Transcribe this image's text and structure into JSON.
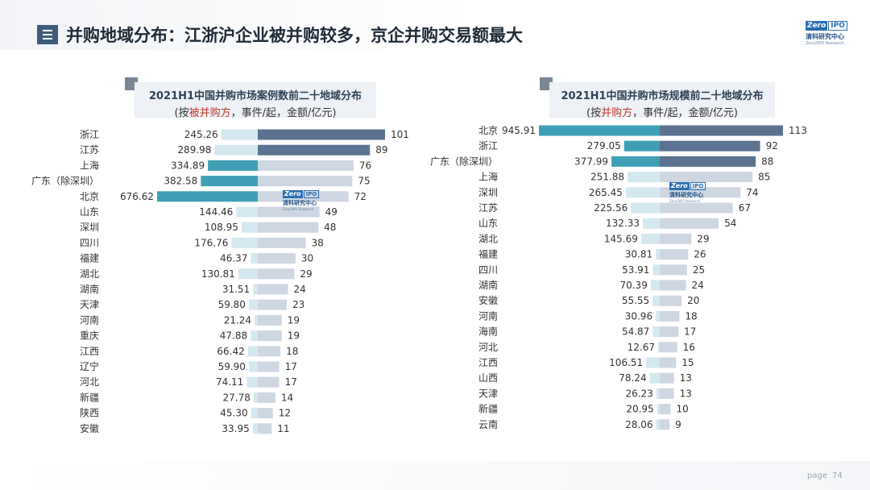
{
  "page": {
    "title": "并购地域分布：江浙沪企业被并购较多，京企并购交易额最大",
    "page_label": "page",
    "page_number": "74"
  },
  "logo": {
    "brand": "Zero",
    "brand2": "IPO",
    "name_cn": "清科研究中心",
    "name_en": "Zero2IPO Research"
  },
  "watermark": {
    "brand": "Zero",
    "brand2": "IPO",
    "name_cn": "清科研究中心",
    "name_en": "Zero2IPO Research"
  },
  "colors": {
    "case_bar": "#5b7391",
    "left_highlight": "#3fa0b5",
    "left_light": "#d4e8ef",
    "right_light": "#cdd6e1"
  },
  "chart_data": [
    {
      "type": "bar",
      "title": "2021H1中国并购市场案例数前二十地域分布",
      "subtitle_prefix": "(按",
      "subtitle_highlight": "被并购方",
      "subtitle_suffix": "，事件/起，金额/亿元)",
      "categories": [
        "浙江",
        "江苏",
        "上海",
        "广东（除深圳）",
        "北京",
        "山东",
        "深圳",
        "四川",
        "福建",
        "湖北",
        "湖南",
        "天津",
        "河南",
        "重庆",
        "江西",
        "辽宁",
        "河北",
        "新疆",
        "陕西",
        "安徽"
      ],
      "series": [
        {
          "values": [
            245.26,
            289.98,
            334.89,
            382.58,
            676.62,
            144.46,
            108.95,
            176.76,
            46.37,
            130.81,
            31.51,
            59.8,
            21.24,
            47.88,
            66.42,
            59.9,
            74.11,
            27.78,
            45.3,
            33.95
          ]
        },
        {
          "values": [
            101,
            89,
            76,
            75,
            72,
            49,
            48,
            38,
            30,
            29,
            24,
            23,
            19,
            19,
            18,
            17,
            17,
            14,
            12,
            11
          ]
        }
      ],
      "amount_labels": [
        "245.26",
        "289.98",
        "334.89",
        "382.58",
        "676.62",
        "144.46",
        "108.95",
        "176.76",
        "46.37",
        "130.81",
        "31.51",
        "59.80",
        "21.24",
        "47.88",
        "66.42",
        "59.90",
        "74.11",
        "27.78",
        "45.30",
        "33.95"
      ],
      "highlight": [
        false,
        false,
        true,
        true,
        true,
        false,
        false,
        false,
        false,
        false,
        false,
        false,
        false,
        false,
        false,
        false,
        false,
        false,
        false,
        false
      ],
      "highlight_cases": [
        true,
        true,
        false,
        false,
        false,
        false,
        false,
        false,
        false,
        false,
        false,
        false,
        false,
        false,
        false,
        false,
        false,
        false,
        false,
        false
      ]
    },
    {
      "type": "bar",
      "title": "2021H1中国并购市场规模前二十地域分布",
      "subtitle_prefix": "(按",
      "subtitle_highlight": "并购方",
      "subtitle_suffix": "，事件/起，金额/亿元)",
      "categories": [
        "北京",
        "浙江",
        "广东（除深圳）",
        "上海",
        "深圳",
        "江苏",
        "山东",
        "湖北",
        "福建",
        "四川",
        "湖南",
        "安徽",
        "河南",
        "海南",
        "河北",
        "江西",
        "山西",
        "天津",
        "新疆",
        "云南"
      ],
      "series": [
        {
          "values": [
            945.91,
            279.05,
            377.99,
            251.88,
            265.45,
            225.56,
            132.33,
            145.69,
            30.81,
            53.91,
            70.39,
            55.55,
            30.96,
            54.87,
            12.67,
            106.51,
            78.24,
            26.23,
            20.95,
            28.06
          ]
        },
        {
          "values": [
            113,
            92,
            88,
            85,
            74,
            67,
            54,
            29,
            26,
            25,
            24,
            20,
            18,
            17,
            16,
            15,
            13,
            13,
            10,
            9
          ]
        }
      ],
      "amount_labels": [
        "945.91",
        "279.05",
        "377.99",
        "251.88",
        "265.45",
        "225.56",
        "132.33",
        "145.69",
        "30.81",
        "53.91",
        "70.39",
        "55.55",
        "30.96",
        "54.87",
        "12.67",
        "106.51",
        "78.24",
        "26.23",
        "20.95",
        "28.06"
      ],
      "highlight": [
        true,
        true,
        true,
        false,
        false,
        false,
        false,
        false,
        false,
        false,
        false,
        false,
        false,
        false,
        false,
        false,
        false,
        false,
        false,
        false
      ],
      "highlight_cases": [
        true,
        true,
        true,
        false,
        false,
        false,
        false,
        false,
        false,
        false,
        false,
        false,
        false,
        false,
        false,
        false,
        false,
        false,
        false,
        false
      ]
    }
  ]
}
